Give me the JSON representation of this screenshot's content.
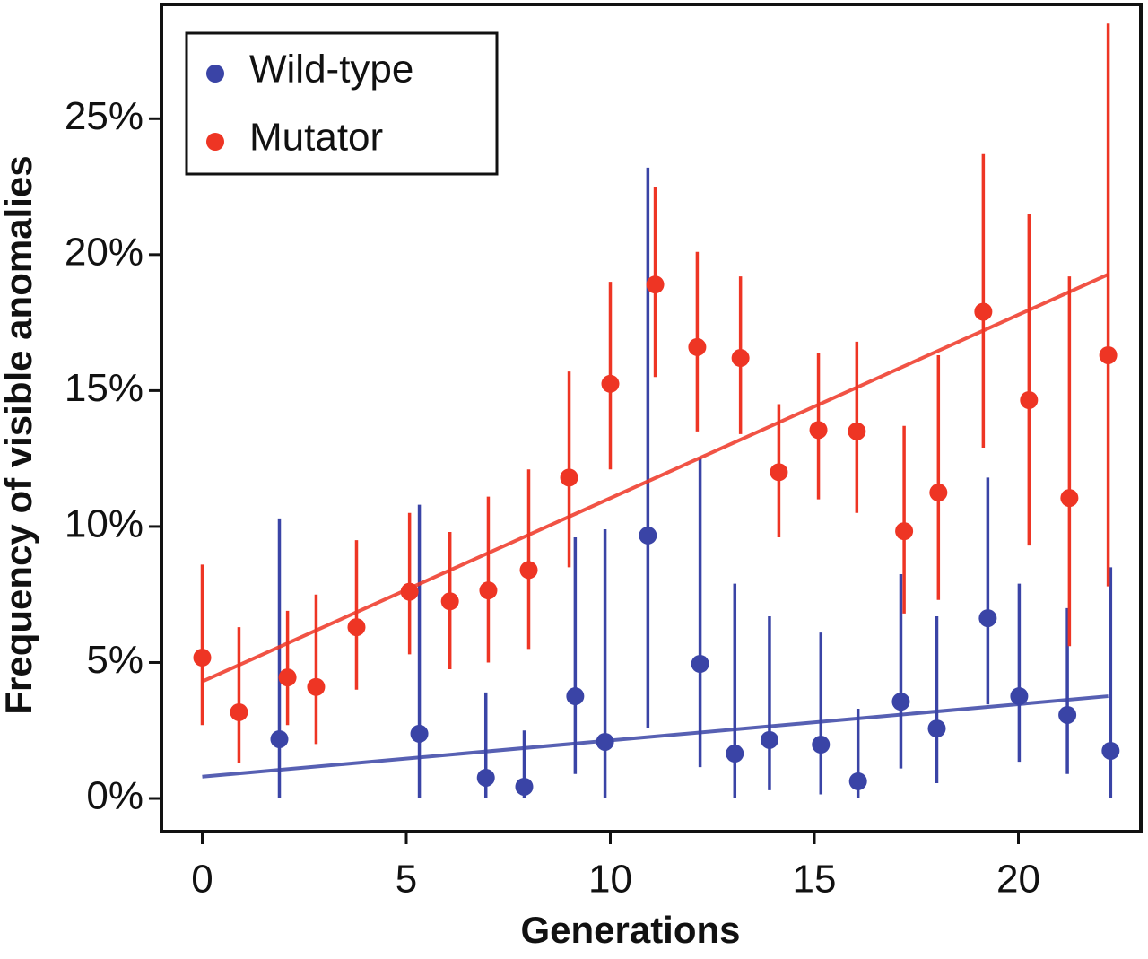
{
  "chart_data": {
    "type": "scatter",
    "x_label": "Generations",
    "y_label": "Frequency of visible anomalies",
    "xlim": [
      -1,
      23
    ],
    "xticks": [
      0,
      5,
      10,
      15,
      20
    ],
    "ylim": [
      -1.22,
      29.2
    ],
    "yticks": [
      {
        "value": 0,
        "label": "0%"
      },
      {
        "value": 5,
        "label": "5%"
      },
      {
        "value": 10,
        "label": "10%"
      },
      {
        "value": 15,
        "label": "15%"
      },
      {
        "value": 20,
        "label": "20%"
      },
      {
        "value": 25,
        "label": "25%"
      }
    ],
    "legend": "upper left",
    "series": [
      {
        "name": "Wild-type",
        "color": "#3a44a6",
        "x": [
          1.89,
          5.32,
          6.95,
          7.89,
          9.14,
          9.87,
          10.92,
          12.2,
          13.05,
          13.9,
          15.16,
          16.07,
          17.12,
          18.0,
          19.25,
          20.02,
          21.2,
          22.26
        ],
        "values": [
          2.18,
          2.38,
          0.76,
          0.43,
          3.76,
          2.08,
          9.67,
          4.95,
          1.65,
          2.15,
          1.98,
          0.63,
          3.56,
          2.57,
          6.63,
          3.76,
          3.07,
          1.75
        ],
        "lower": [
          0,
          0,
          0,
          0,
          0.9,
          0,
          2.6,
          1.15,
          0,
          0.3,
          0.15,
          0,
          1.1,
          0.56,
          3.46,
          1.35,
          0.9,
          0
        ],
        "upper": [
          10.3,
          10.8,
          3.9,
          2.5,
          9.6,
          9.9,
          23.2,
          12.5,
          7.9,
          6.7,
          6.1,
          3.3,
          8.25,
          6.7,
          11.8,
          7.9,
          7.0,
          8.5
        ],
        "trend_x": [
          0,
          22.2
        ],
        "trend_values": [
          0.8,
          3.76
        ]
      },
      {
        "name": "Mutator",
        "color": "#ee3524",
        "x": [
          0,
          0.9,
          2.09,
          2.79,
          3.78,
          5.08,
          6.07,
          7.01,
          8.0,
          8.99,
          10.0,
          11.1,
          12.13,
          13.19,
          14.13,
          15.1,
          16.04,
          17.2,
          18.04,
          19.14,
          20.26,
          21.25,
          22.2
        ],
        "values": [
          5.18,
          3.17,
          4.45,
          4.1,
          6.3,
          7.6,
          7.25,
          7.65,
          8.4,
          11.8,
          15.25,
          18.9,
          16.6,
          16.2,
          12.0,
          13.55,
          13.5,
          9.83,
          11.25,
          17.9,
          14.65,
          11.05,
          16.3
        ],
        "lower": [
          2.7,
          1.3,
          2.7,
          2.0,
          4.0,
          5.3,
          4.75,
          5.0,
          5.5,
          8.5,
          12.1,
          15.5,
          13.5,
          13.4,
          9.6,
          11.0,
          10.5,
          6.8,
          7.3,
          12.9,
          9.3,
          5.6,
          7.8
        ],
        "upper": [
          8.6,
          6.3,
          6.9,
          7.5,
          9.5,
          10.5,
          9.8,
          11.1,
          12.1,
          15.7,
          19.0,
          22.5,
          20.1,
          19.2,
          14.5,
          16.4,
          16.8,
          13.7,
          16.3,
          23.7,
          21.5,
          19.2,
          28.5
        ],
        "trend_x": [
          0,
          22.2
        ],
        "trend_values": [
          4.3,
          19.27
        ]
      }
    ]
  }
}
